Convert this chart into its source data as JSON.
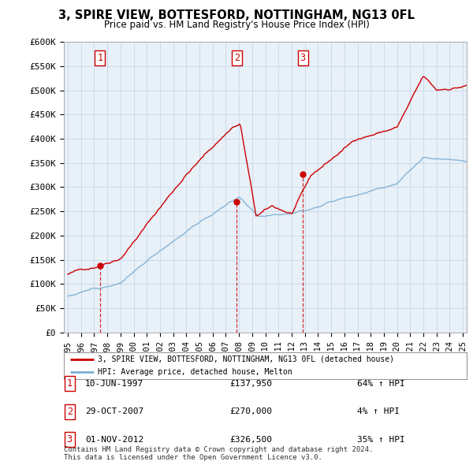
{
  "title_line1": "3, SPIRE VIEW, BOTTESFORD, NOTTINGHAM, NG13 0FL",
  "title_line2": "Price paid vs. HM Land Registry's House Price Index (HPI)",
  "ylabel_ticks": [
    "£0",
    "£50K",
    "£100K",
    "£150K",
    "£200K",
    "£250K",
    "£300K",
    "£350K",
    "£400K",
    "£450K",
    "£500K",
    "£550K",
    "£600K"
  ],
  "ytick_values": [
    0,
    50000,
    100000,
    150000,
    200000,
    250000,
    300000,
    350000,
    400000,
    450000,
    500000,
    550000,
    600000
  ],
  "xlim_start": 1994.7,
  "xlim_end": 2025.3,
  "ylim_min": 0,
  "ylim_max": 600000,
  "sale_dates": [
    1997.44,
    2007.83,
    2012.84
  ],
  "sale_prices": [
    137950,
    270000,
    326500
  ],
  "sale_labels": [
    "1",
    "2",
    "3"
  ],
  "hpi_color": "#7bafd4",
  "price_color": "#cc0000",
  "legend_entries": [
    "3, SPIRE VIEW, BOTTESFORD, NOTTINGHAM, NG13 0FL (detached house)",
    "HPI: Average price, detached house, Melton"
  ],
  "table_rows": [
    [
      "1",
      "10-JUN-1997",
      "£137,950",
      "64% ↑ HPI"
    ],
    [
      "2",
      "29-OCT-2007",
      "£270,000",
      "4% ↑ HPI"
    ],
    [
      "3",
      "01-NOV-2012",
      "£326,500",
      "35% ↑ HPI"
    ]
  ],
  "footer_text": "Contains HM Land Registry data © Crown copyright and database right 2024.\nThis data is licensed under the Open Government Licence v3.0.",
  "background_color": "#ffffff",
  "grid_color": "#c8d8e8",
  "plot_bg_color": "#e8f0f8"
}
